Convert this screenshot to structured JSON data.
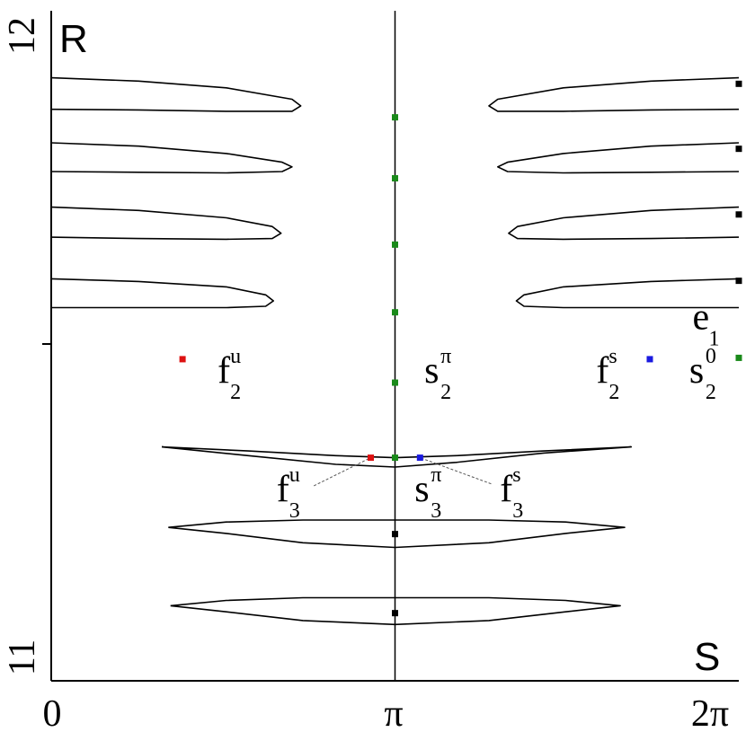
{
  "chart_data": {
    "type": "line",
    "title": "",
    "xlabel": "S",
    "ylabel": "R",
    "xlim": [
      0,
      6.2832
    ],
    "ylim": [
      11,
      12
    ],
    "x_ticks": [
      {
        "value": 0,
        "label": "0"
      },
      {
        "value": 3.1416,
        "label": "π"
      },
      {
        "value": 6.2832,
        "label": "2π"
      }
    ],
    "y_ticks": [
      {
        "value": 11,
        "label": "11"
      },
      {
        "value": 11.5,
        "label": ""
      },
      {
        "value": 12,
        "label": "12"
      }
    ],
    "vertical_line_x": 3.1416,
    "grid": false,
    "legend": "none",
    "series": [
      {
        "color": "#000000",
        "points": [
          [
            0,
            11.9
          ],
          [
            0.8,
            11.895
          ],
          [
            1.6,
            11.885
          ],
          [
            2.2,
            11.868
          ],
          [
            2.28,
            11.858
          ],
          [
            2.2,
            11.85
          ],
          [
            1.6,
            11.85
          ],
          [
            0.8,
            11.852
          ],
          [
            0,
            11.853
          ]
        ]
      },
      {
        "color": "#000000",
        "points": [
          [
            0,
            11.803
          ],
          [
            0.8,
            11.798
          ],
          [
            1.6,
            11.787
          ],
          [
            2.11,
            11.774
          ],
          [
            2.2,
            11.767
          ],
          [
            2.11,
            11.76
          ],
          [
            1.6,
            11.758
          ],
          [
            0.8,
            11.759
          ],
          [
            0,
            11.76
          ]
        ]
      },
      {
        "color": "#000000",
        "points": [
          [
            0,
            11.707
          ],
          [
            0.8,
            11.702
          ],
          [
            1.6,
            11.691
          ],
          [
            2.02,
            11.678
          ],
          [
            2.1,
            11.668
          ],
          [
            2.02,
            11.66
          ],
          [
            1.6,
            11.659
          ],
          [
            0.8,
            11.66
          ],
          [
            0,
            11.662
          ]
        ]
      },
      {
        "color": "#000000",
        "points": [
          [
            0,
            11.6
          ],
          [
            0.8,
            11.596
          ],
          [
            1.6,
            11.588
          ],
          [
            1.96,
            11.576
          ],
          [
            2.03,
            11.567
          ],
          [
            1.96,
            11.559
          ],
          [
            1.6,
            11.557
          ],
          [
            0.8,
            11.557
          ],
          [
            0,
            11.557
          ]
        ]
      },
      {
        "color": "#000000",
        "points": [
          [
            6.2832,
            11.9
          ],
          [
            5.48,
            11.895
          ],
          [
            4.68,
            11.885
          ],
          [
            4.08,
            11.868
          ],
          [
            4.0,
            11.858
          ],
          [
            4.08,
            11.85
          ],
          [
            4.68,
            11.85
          ],
          [
            5.48,
            11.852
          ],
          [
            6.2832,
            11.853
          ]
        ]
      },
      {
        "color": "#000000",
        "points": [
          [
            6.2832,
            11.803
          ],
          [
            5.48,
            11.798
          ],
          [
            4.68,
            11.787
          ],
          [
            4.17,
            11.774
          ],
          [
            4.08,
            11.767
          ],
          [
            4.17,
            11.76
          ],
          [
            4.68,
            11.758
          ],
          [
            5.48,
            11.759
          ],
          [
            6.2832,
            11.76
          ]
        ]
      },
      {
        "color": "#000000",
        "points": [
          [
            6.2832,
            11.707
          ],
          [
            5.48,
            11.702
          ],
          [
            4.68,
            11.691
          ],
          [
            4.26,
            11.678
          ],
          [
            4.18,
            11.668
          ],
          [
            4.26,
            11.66
          ],
          [
            4.68,
            11.659
          ],
          [
            5.48,
            11.66
          ],
          [
            6.2832,
            11.662
          ]
        ]
      },
      {
        "color": "#000000",
        "points": [
          [
            6.2832,
            11.6
          ],
          [
            5.48,
            11.596
          ],
          [
            4.68,
            11.588
          ],
          [
            4.32,
            11.576
          ],
          [
            4.25,
            11.567
          ],
          [
            4.32,
            11.559
          ],
          [
            4.68,
            11.557
          ],
          [
            5.48,
            11.557
          ],
          [
            6.2832,
            11.557
          ]
        ]
      },
      {
        "color": "#000000",
        "points": [
          [
            1.01,
            11.349
          ],
          [
            1.8,
            11.343
          ],
          [
            2.6,
            11.336
          ],
          [
            3.1416,
            11.333
          ],
          [
            3.7,
            11.336
          ],
          [
            4.5,
            11.343
          ],
          [
            5.3,
            11.349
          ],
          [
            4.5,
            11.34
          ],
          [
            3.7,
            11.326
          ],
          [
            3.1416,
            11.319
          ],
          [
            2.6,
            11.323
          ],
          [
            1.8,
            11.336
          ],
          [
            1.01,
            11.349
          ]
        ]
      },
      {
        "color": "#000000",
        "points": [
          [
            1.07,
            11.229
          ],
          [
            1.6,
            11.237
          ],
          [
            2.3,
            11.24
          ],
          [
            3.1416,
            11.24
          ],
          [
            4.0,
            11.24
          ],
          [
            4.7,
            11.237
          ],
          [
            5.24,
            11.229
          ],
          [
            4.7,
            11.22
          ],
          [
            4.0,
            11.206
          ],
          [
            3.1416,
            11.199
          ],
          [
            2.3,
            11.206
          ],
          [
            1.6,
            11.22
          ],
          [
            1.07,
            11.229
          ]
        ]
      },
      {
        "color": "#000000",
        "points": [
          [
            1.09,
            11.112
          ],
          [
            1.6,
            11.12
          ],
          [
            2.3,
            11.124
          ],
          [
            3.1416,
            11.124
          ],
          [
            4.0,
            11.124
          ],
          [
            4.7,
            11.12
          ],
          [
            5.2,
            11.112
          ],
          [
            4.7,
            11.103
          ],
          [
            4.0,
            11.09
          ],
          [
            3.1416,
            11.084
          ],
          [
            2.3,
            11.09
          ],
          [
            1.6,
            11.103
          ],
          [
            1.09,
            11.112
          ]
        ]
      }
    ],
    "points": [
      {
        "x": 3.1416,
        "y": 11.841,
        "color": "#1a8a1a"
      },
      {
        "x": 3.1416,
        "y": 11.75,
        "color": "#1a8a1a"
      },
      {
        "x": 3.1416,
        "y": 11.651,
        "color": "#1a8a1a"
      },
      {
        "x": 3.1416,
        "y": 11.55,
        "color": "#1a8a1a"
      },
      {
        "x": 3.1416,
        "y": 11.445,
        "color": "#1a8a1a"
      },
      {
        "x": 3.1416,
        "y": 11.333,
        "color": "#1a8a1a"
      },
      {
        "x": 3.1416,
        "y": 11.219,
        "color": "#000000"
      },
      {
        "x": 3.1416,
        "y": 11.101,
        "color": "#000000"
      },
      {
        "x": 1.2,
        "y": 11.48,
        "color": "#dd1111"
      },
      {
        "x": 5.47,
        "y": 11.48,
        "color": "#1a1ae0"
      },
      {
        "x": 6.2832,
        "y": 11.482,
        "color": "#1a8a1a"
      },
      {
        "x": 2.92,
        "y": 11.333,
        "color": "#dd1111"
      },
      {
        "x": 3.37,
        "y": 11.333,
        "color": "#1a1ae0"
      },
      {
        "x": 6.2832,
        "y": 11.891,
        "color": "#000000"
      },
      {
        "x": 6.2832,
        "y": 11.794,
        "color": "#000000"
      },
      {
        "x": 6.2832,
        "y": 11.696,
        "color": "#000000"
      },
      {
        "x": 6.2832,
        "y": 11.597,
        "color": "#000000"
      }
    ],
    "annotations": [
      {
        "base": "f",
        "sup": "u",
        "sub": "2",
        "x": 1.52,
        "y": 11.445
      },
      {
        "base": "s",
        "sup": "π",
        "sub": "2",
        "x": 3.41,
        "y": 11.445
      },
      {
        "base": "f",
        "sup": "s",
        "sub": "2",
        "x": 4.98,
        "y": 11.445
      },
      {
        "base": "s",
        "sup": "0",
        "sub": "2",
        "x": 5.83,
        "y": 11.445
      },
      {
        "base": "e",
        "sup": "",
        "sub": "1",
        "x": 5.86,
        "y": 11.525
      },
      {
        "base": "f",
        "sup": "u",
        "sub": "3",
        "x": 2.06,
        "y": 11.268
      },
      {
        "base": "s",
        "sup": "π",
        "sub": "3",
        "x": 3.32,
        "y": 11.268
      },
      {
        "base": "f",
        "sup": "s",
        "sub": "3",
        "x": 4.1,
        "y": 11.268
      }
    ],
    "leader_lines": [
      {
        "from": [
          2.4,
          11.291
        ],
        "to": [
          2.92,
          11.333
        ]
      },
      {
        "from": [
          4.02,
          11.294
        ],
        "to": [
          3.37,
          11.333
        ]
      }
    ]
  }
}
